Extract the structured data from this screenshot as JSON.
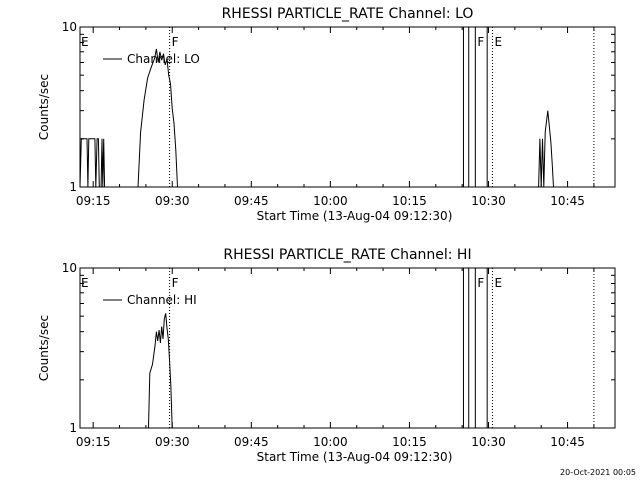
{
  "footer": {
    "timestamp": "20-Oct-2021 00:05"
  },
  "chart_data": [
    {
      "type": "line",
      "title": "RHESSI PARTICLE_RATE Channel: LO",
      "xlabel": "Start Time (13-Aug-04 09:12:30)",
      "ylabel": "Counts/sec",
      "yscale": "log",
      "xlim": [
        "09:12:30",
        "10:54:00"
      ],
      "ylim": [
        1,
        10
      ],
      "x_ticks": [
        "09:15",
        "09:30",
        "09:45",
        "10:00",
        "10:15",
        "10:30",
        "10:45"
      ],
      "y_ticks": [
        "1",
        "10"
      ],
      "legend": {
        "position": "top-left",
        "entries": [
          "Channel: LO"
        ]
      },
      "markers": [
        {
          "label": "E",
          "time": "09:12:30",
          "style": "none"
        },
        {
          "label": "F",
          "time": "09:29:30",
          "style": "dotted"
        },
        {
          "label": "F",
          "time": "10:27:30",
          "style": "solid"
        },
        {
          "label": "E",
          "time": "10:30:45",
          "style": "dotted"
        },
        {
          "label": "",
          "time": "10:50:00",
          "style": "dotted"
        }
      ],
      "shaded_lines": [
        "10:25:15",
        "10:26:15",
        "10:29:45"
      ],
      "series": [
        {
          "name": "Channel: LO",
          "points": [
            [
              "09:12:30",
              1
            ],
            [
              "09:12:45",
              2
            ],
            [
              "09:13:50",
              2
            ],
            [
              "09:14:00",
              1
            ],
            [
              "09:14:10",
              2
            ],
            [
              "09:15:20",
              2
            ],
            [
              "09:15:30",
              1
            ],
            [
              "09:15:45",
              2
            ],
            [
              "09:16:00",
              2
            ],
            [
              "09:16:10",
              1
            ],
            [
              "09:16:30",
              1
            ],
            [
              "09:16:40",
              2
            ],
            [
              "09:16:50",
              1
            ],
            [
              "09:17:00",
              2
            ],
            [
              "09:17:10",
              1
            ],
            [
              "09:23:30",
              1
            ],
            [
              "09:24:00",
              2.2
            ],
            [
              "09:24:40",
              3.5
            ],
            [
              "09:25:20",
              4.8
            ],
            [
              "09:26:00",
              5.6
            ],
            [
              "09:26:40",
              6.4
            ],
            [
              "09:27:00",
              7.3
            ],
            [
              "09:27:20",
              6.0
            ],
            [
              "09:27:40",
              7.0
            ],
            [
              "09:28:00",
              6.2
            ],
            [
              "09:28:20",
              6.8
            ],
            [
              "09:28:40",
              5.8
            ],
            [
              "09:29:00",
              6.3
            ],
            [
              "09:29:20",
              5.0
            ],
            [
              "09:29:40",
              4.4
            ],
            [
              "09:30:00",
              3.1
            ],
            [
              "09:30:20",
              2.5
            ],
            [
              "09:30:40",
              1.7
            ],
            [
              "09:31:00",
              1
            ],
            [
              "10:39:30",
              1
            ],
            [
              "10:39:45",
              2
            ],
            [
              "10:40:00",
              1
            ],
            [
              "10:40:15",
              2
            ],
            [
              "10:40:30",
              1
            ],
            [
              "10:40:45",
              2.2
            ],
            [
              "10:41:15",
              3.0
            ],
            [
              "10:41:35",
              2.3
            ],
            [
              "10:41:50",
              1.9
            ],
            [
              "10:42:05",
              1.4
            ],
            [
              "10:42:20",
              1
            ]
          ]
        }
      ]
    },
    {
      "type": "line",
      "title": "RHESSI PARTICLE_RATE Channel: HI",
      "xlabel": "Start Time (13-Aug-04 09:12:30)",
      "ylabel": "Counts/sec",
      "yscale": "log",
      "xlim": [
        "09:12:30",
        "10:54:00"
      ],
      "ylim": [
        1,
        10
      ],
      "x_ticks": [
        "09:15",
        "09:30",
        "09:45",
        "10:00",
        "10:15",
        "10:30",
        "10:45"
      ],
      "y_ticks": [
        "1",
        "10"
      ],
      "legend": {
        "position": "top-left",
        "entries": [
          "Channel: HI"
        ]
      },
      "markers": [
        {
          "label": "E",
          "time": "09:12:30",
          "style": "none"
        },
        {
          "label": "F",
          "time": "09:29:30",
          "style": "dotted"
        },
        {
          "label": "F",
          "time": "10:27:30",
          "style": "solid"
        },
        {
          "label": "E",
          "time": "10:30:45",
          "style": "dotted"
        },
        {
          "label": "",
          "time": "10:50:00",
          "style": "dotted"
        }
      ],
      "shaded_lines": [
        "10:25:15",
        "10:26:15",
        "10:29:45"
      ],
      "series": [
        {
          "name": "Channel: HI",
          "points": [
            [
              "09:25:30",
              1
            ],
            [
              "09:25:45",
              2.2
            ],
            [
              "09:26:15",
              2.5
            ],
            [
              "09:26:45",
              3.3
            ],
            [
              "09:27:00",
              4.0
            ],
            [
              "09:27:15",
              3.5
            ],
            [
              "09:27:30",
              4.1
            ],
            [
              "09:27:45",
              3.4
            ],
            [
              "09:28:00",
              4.3
            ],
            [
              "09:28:15",
              3.6
            ],
            [
              "09:28:30",
              4.8
            ],
            [
              "09:28:45",
              5.2
            ],
            [
              "09:29:00",
              4.2
            ],
            [
              "09:29:15",
              3.6
            ],
            [
              "09:29:30",
              2.6
            ],
            [
              "09:29:45",
              1.8
            ],
            [
              "09:30:00",
              1
            ]
          ]
        }
      ]
    }
  ]
}
